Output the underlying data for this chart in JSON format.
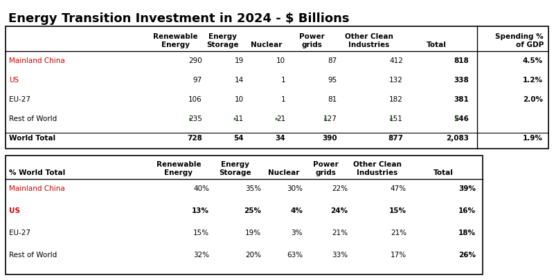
{
  "title": "Energy Transition Investment in 2024 - $ Billions",
  "t1_col_headers_line1": [
    "",
    "Renewable",
    "Energy",
    "",
    "Power",
    "Other Clean",
    "",
    "Spending %"
  ],
  "t1_col_headers_line2": [
    "",
    "Energy",
    "Storage",
    "Nuclear",
    "grids",
    "Industries",
    "Total",
    "of GDP"
  ],
  "t1_rows": [
    {
      "label": "Mainland China",
      "vals": [
        "290",
        "19",
        "10",
        "87",
        "412",
        "818",
        "4.5%"
      ],
      "label_color": "#cc0000",
      "bold": false,
      "arrows": [
        false,
        false,
        false,
        false,
        false,
        false,
        false
      ]
    },
    {
      "label": "US",
      "vals": [
        "97",
        "14",
        "1",
        "95",
        "132",
        "338",
        "1.2%"
      ],
      "label_color": "#cc0000",
      "bold": false,
      "arrows": [
        false,
        false,
        false,
        false,
        false,
        false,
        false
      ]
    },
    {
      "label": "EU-27",
      "vals": [
        "106",
        "10",
        "1",
        "81",
        "182",
        "381",
        "2.0%"
      ],
      "label_color": "#000000",
      "bold": false,
      "arrows": [
        false,
        false,
        false,
        false,
        false,
        false,
        false
      ]
    },
    {
      "label": "Rest of World",
      "vals": [
        "235",
        "11",
        "21",
        "127",
        "151",
        "546",
        ""
      ],
      "label_color": "#000000",
      "bold": false,
      "arrows": [
        true,
        true,
        true,
        true,
        true,
        true,
        false
      ]
    },
    {
      "label": "World Total",
      "vals": [
        "728",
        "54",
        "34",
        "390",
        "877",
        "2,083",
        "1.9%"
      ],
      "label_color": "#000000",
      "bold": true,
      "arrows": [
        false,
        false,
        false,
        false,
        false,
        false,
        false
      ]
    }
  ],
  "t2_col_headers_line1": [
    "",
    "Renewable",
    "Energy",
    "",
    "Power",
    "Other Clean",
    ""
  ],
  "t2_col_headers_line2": [
    "% World Total",
    "Energy",
    "Storage",
    "Nuclear",
    "grids",
    "Industries",
    "Total"
  ],
  "t2_rows": [
    {
      "label": "Mainland China",
      "vals": [
        "40%",
        "35%",
        "30%",
        "22%",
        "47%",
        "39%"
      ],
      "label_color": "#cc0000",
      "bold": false
    },
    {
      "label": "US",
      "vals": [
        "13%",
        "25%",
        "4%",
        "24%",
        "15%",
        "16%"
      ],
      "label_color": "#cc0000",
      "bold": true
    },
    {
      "label": "EU-27",
      "vals": [
        "15%",
        "19%",
        "3%",
        "21%",
        "21%",
        "18%"
      ],
      "label_color": "#000000",
      "bold": false
    },
    {
      "label": "Rest of World",
      "vals": [
        "32%",
        "20%",
        "63%",
        "33%",
        "17%",
        "26%"
      ],
      "label_color": "#000000",
      "bold": false
    }
  ],
  "arrow_color": "#2e7d32",
  "bg_color": "#ffffff"
}
